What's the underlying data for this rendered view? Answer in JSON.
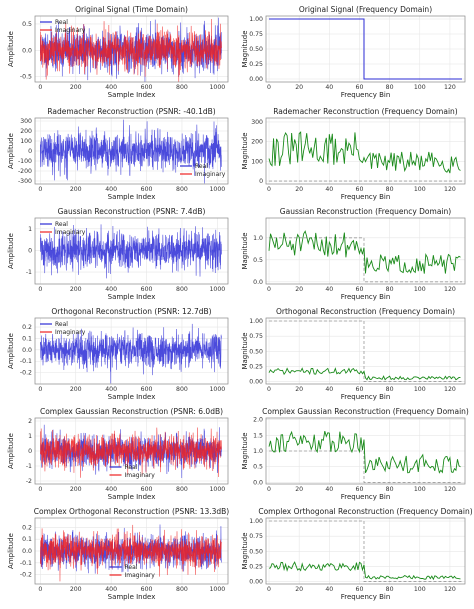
{
  "figure": {
    "background": "#ffffff",
    "colors": {
      "real": "#2b2bd6",
      "imaginary": "#ee2222",
      "magnitude": "#1a8a1a",
      "reference": "#999999",
      "grid": "#e6e6e6",
      "frame": "#888888"
    }
  },
  "chart_data": [
    {
      "type": "line",
      "title": "Original Signal (Time Domain)",
      "xlabel": "Sample Index",
      "ylabel": "Amplitude",
      "xlim": [
        -30,
        1060
      ],
      "ylim": [
        -0.6,
        0.65
      ],
      "xticks": [
        0,
        200,
        400,
        600,
        800,
        1000
      ],
      "yticks": [
        -0.5,
        0.0,
        0.5
      ],
      "ytick_labels": [
        "-0.5",
        "0.0",
        "0.5"
      ],
      "n_samples": 1024,
      "series": [
        {
          "name": "Real",
          "color": "#2b2bd6",
          "amplitude": 0.2,
          "seed": 11
        },
        {
          "name": "Imaginary",
          "color": "#ee2222",
          "amplitude": 0.18,
          "seed": 12
        }
      ],
      "legend": "top-left"
    },
    {
      "type": "line",
      "title": "Original Signal (Frequency Domain)",
      "xlabel": "Frequency Bin",
      "ylabel": "Magnitude",
      "xlim": [
        -2,
        130
      ],
      "ylim": [
        -0.05,
        1.05
      ],
      "xticks": [
        0,
        20,
        40,
        60,
        80,
        100,
        120
      ],
      "yticks": [
        0.0,
        0.25,
        0.5,
        0.75,
        1.0
      ],
      "ytick_labels": [
        "0.00",
        "0.25",
        "0.50",
        "0.75",
        "1.00"
      ],
      "series": [
        {
          "x": [
            0,
            63,
            63,
            64,
            128
          ],
          "y": [
            1.0,
            1.0,
            0.0,
            0.0,
            0.0
          ],
          "color": "#2b2bd6"
        }
      ]
    },
    {
      "type": "line",
      "title": "Rademacher Reconstruction (PSNR: -40.1dB)",
      "xlabel": "Sample Index",
      "ylabel": "Amplitude",
      "xlim": [
        -30,
        1060
      ],
      "ylim": [
        -330,
        330
      ],
      "xticks": [
        0,
        200,
        400,
        600,
        800,
        1000
      ],
      "yticks": [
        -300,
        -200,
        -100,
        0,
        100,
        200,
        300
      ],
      "ytick_labels": [
        "-300",
        "-200",
        "-100",
        "0",
        "100",
        "200",
        "300"
      ],
      "n_samples": 1024,
      "series": [
        {
          "name": "Real",
          "color": "#2b2bd6",
          "amplitude": 95,
          "seed": 21
        },
        {
          "name": "Imaginary",
          "color": "#ee2222",
          "amplitude": 0,
          "seed": 22
        }
      ],
      "legend": "lower-right"
    },
    {
      "type": "line",
      "title": "Rademacher Reconstruction (Frequency Domain)",
      "xlabel": "Frequency Bin",
      "ylabel": "Magnitude",
      "xlim": [
        -2,
        130
      ],
      "ylim": [
        -15,
        320
      ],
      "xticks": [
        0,
        20,
        40,
        60,
        80,
        100,
        120
      ],
      "yticks": [
        0,
        100,
        200,
        300
      ],
      "ytick_labels": [
        "0",
        "100",
        "200",
        "300"
      ],
      "reference": {
        "x": [
          0,
          64,
          64,
          128
        ],
        "y": [
          0,
          0,
          0,
          0
        ]
      },
      "magnitude": {
        "n_bins": 128,
        "low_mean": 160,
        "low_spread": 90,
        "high_mean": 95,
        "high_spread": 55,
        "seed": 31
      }
    },
    {
      "type": "line",
      "title": "Gaussian Reconstruction (PSNR: 7.4dB)",
      "xlabel": "Sample Index",
      "ylabel": "Amplitude",
      "xlim": [
        -30,
        1060
      ],
      "ylim": [
        -1.55,
        1.5
      ],
      "xticks": [
        0,
        200,
        400,
        600,
        800,
        1000
      ],
      "yticks": [
        -1,
        0,
        1
      ],
      "ytick_labels": [
        "-1",
        "0",
        "1"
      ],
      "n_samples": 1024,
      "series": [
        {
          "name": "Real",
          "color": "#2b2bd6",
          "amplitude": 0.45,
          "seed": 41
        },
        {
          "name": "Imaginary",
          "color": "#ee2222",
          "amplitude": 0,
          "seed": 42
        }
      ],
      "legend": "top-left"
    },
    {
      "type": "line",
      "title": "Gaussian Reconstruction (Frequency Domain)",
      "xlabel": "Frequency Bin",
      "ylabel": "Magnitude",
      "xlim": [
        -2,
        130
      ],
      "ylim": [
        -0.05,
        1.45
      ],
      "xticks": [
        0,
        20,
        40,
        60,
        80,
        100,
        120
      ],
      "yticks": [
        0.0,
        0.5,
        1.0
      ],
      "ytick_labels": [
        "0.0",
        "0.5",
        "1.0"
      ],
      "reference": {
        "x": [
          0,
          63,
          63,
          64,
          128
        ],
        "y": [
          1.0,
          1.0,
          0.0,
          0.0,
          0.0
        ]
      },
      "magnitude": {
        "n_bins": 128,
        "low_mean": 0.85,
        "low_spread": 0.3,
        "high_mean": 0.4,
        "high_spread": 0.22,
        "seed": 51
      }
    },
    {
      "type": "line",
      "title": "Orthogonal Reconstruction (PSNR: 12.7dB)",
      "xlabel": "Sample Index",
      "ylabel": "Amplitude",
      "xlim": [
        -30,
        1060
      ],
      "ylim": [
        -0.3,
        0.28
      ],
      "xticks": [
        0,
        200,
        400,
        600,
        800,
        1000
      ],
      "yticks": [
        -0.2,
        -0.1,
        0.0,
        0.1,
        0.2
      ],
      "ytick_labels": [
        "-0.2",
        "-0.1",
        "0.0",
        "0.1",
        "0.2"
      ],
      "n_samples": 1024,
      "series": [
        {
          "name": "Real",
          "color": "#2b2bd6",
          "amplitude": 0.075,
          "seed": 61
        },
        {
          "name": "Imaginary",
          "color": "#ee2222",
          "amplitude": 0,
          "seed": 62
        }
      ],
      "legend": "top-left"
    },
    {
      "type": "line",
      "title": "Orthogonal Reconstruction (Frequency Domain)",
      "xlabel": "Frequency Bin",
      "ylabel": "Magnitude",
      "xlim": [
        -2,
        130
      ],
      "ylim": [
        -0.04,
        1.05
      ],
      "xticks": [
        0,
        20,
        40,
        60,
        80,
        100,
        120
      ],
      "yticks": [
        0.0,
        0.25,
        0.5,
        0.75,
        1.0
      ],
      "ytick_labels": [
        "0.00",
        "0.25",
        "0.50",
        "0.75",
        "1.00"
      ],
      "reference": {
        "x": [
          0,
          63,
          63,
          64,
          128
        ],
        "y": [
          1.0,
          1.0,
          0.0,
          0.0,
          0.0
        ]
      },
      "magnitude": {
        "n_bins": 128,
        "low_mean": 0.17,
        "low_spread": 0.05,
        "high_mean": 0.06,
        "high_spread": 0.03,
        "seed": 71
      }
    },
    {
      "type": "line",
      "title": "Complex Gaussian Reconstruction (PSNR: 6.0dB)",
      "xlabel": "Sample Index",
      "ylabel": "Amplitude",
      "xlim": [
        -30,
        1060
      ],
      "ylim": [
        -2.2,
        2.2
      ],
      "xticks": [
        0,
        200,
        400,
        600,
        800,
        1000
      ],
      "yticks": [
        -2,
        -1,
        0,
        1,
        2
      ],
      "ytick_labels": [
        "-2",
        "-1",
        "0",
        "1",
        "2"
      ],
      "n_samples": 1024,
      "series": [
        {
          "name": "Real",
          "color": "#2b2bd6",
          "amplitude": 0.55,
          "seed": 81
        },
        {
          "name": "Imaginary",
          "color": "#ee2222",
          "amplitude": 0.55,
          "seed": 82
        }
      ],
      "legend": "lower-center"
    },
    {
      "type": "line",
      "title": "Complex Gaussian Reconstruction (Frequency Domain)",
      "xlabel": "Frequency Bin",
      "ylabel": "Magnitude",
      "xlim": [
        -2,
        130
      ],
      "ylim": [
        -0.05,
        2.05
      ],
      "xticks": [
        0,
        20,
        40,
        60,
        80,
        100,
        120
      ],
      "yticks": [
        0.0,
        0.5,
        1.0,
        1.5,
        2.0
      ],
      "ytick_labels": [
        "0.0",
        "0.5",
        "1.0",
        "1.5",
        "2.0"
      ],
      "reference": {
        "x": [
          0,
          63,
          63,
          64,
          128
        ],
        "y": [
          1.0,
          1.0,
          0.0,
          0.0,
          0.0
        ]
      },
      "magnitude": {
        "n_bins": 128,
        "low_mean": 1.3,
        "low_spread": 0.35,
        "high_mean": 0.6,
        "high_spread": 0.3,
        "seed": 91
      }
    },
    {
      "type": "line",
      "title": "Complex Orthogonal Reconstruction (PSNR: 13.3dB)",
      "xlabel": "Sample Index",
      "ylabel": "Amplitude",
      "xlim": [
        -30,
        1060
      ],
      "ylim": [
        -0.28,
        0.28
      ],
      "xticks": [
        0,
        200,
        400,
        600,
        800,
        1000
      ],
      "yticks": [
        -0.2,
        -0.1,
        0.0,
        0.1,
        0.2
      ],
      "ytick_labels": [
        "-0.2",
        "-0.1",
        "0.0",
        "0.1",
        "0.2"
      ],
      "n_samples": 1024,
      "series": [
        {
          "name": "Real",
          "color": "#2b2bd6",
          "amplitude": 0.07,
          "seed": 101
        },
        {
          "name": "Imaginary",
          "color": "#ee2222",
          "amplitude": 0.07,
          "seed": 102
        }
      ],
      "legend": "lower-center"
    },
    {
      "type": "line",
      "title": "Complex Orthogonal Reconstruction (Frequency Domain)",
      "xlabel": "Frequency Bin",
      "ylabel": "Magnitude",
      "xlim": [
        -2,
        130
      ],
      "ylim": [
        -0.04,
        1.05
      ],
      "xticks": [
        0,
        20,
        40,
        60,
        80,
        100,
        120
      ],
      "yticks": [
        0.0,
        0.25,
        0.5,
        0.75,
        1.0
      ],
      "ytick_labels": [
        "0.00",
        "0.25",
        "0.50",
        "0.75",
        "1.00"
      ],
      "reference": {
        "x": [
          0,
          63,
          63,
          64,
          128
        ],
        "y": [
          1.0,
          1.0,
          0.0,
          0.0,
          0.0
        ]
      },
      "magnitude": {
        "n_bins": 128,
        "low_mean": 0.25,
        "low_spread": 0.07,
        "high_mean": 0.07,
        "high_spread": 0.03,
        "seed": 111
      }
    }
  ]
}
